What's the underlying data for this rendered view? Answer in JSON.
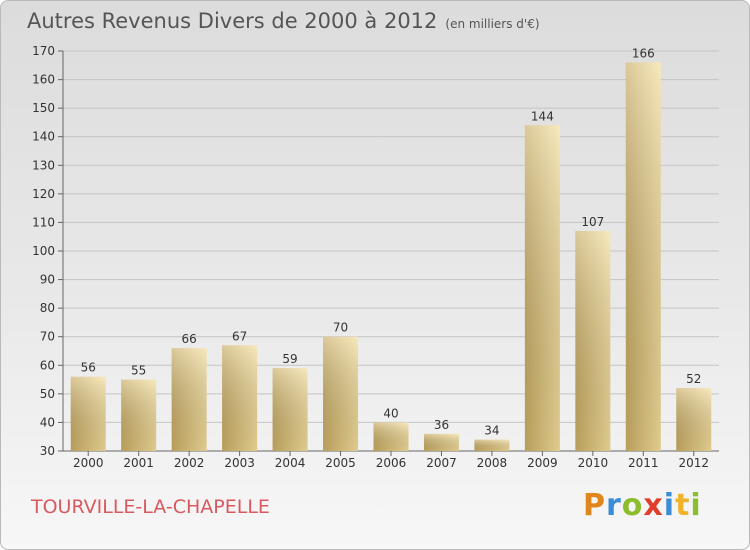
{
  "header": {
    "title": "Autres Revenus Divers de 2000 à 2012",
    "unit": "(en milliers d'€)"
  },
  "footer": {
    "place": "TOURVILLE-LA-CHAPELLE",
    "logo": "Proxiti"
  },
  "colors": {
    "bar_light": "#f3dd9b",
    "bar_dark": "#c8ac63",
    "place_text": "#d8595f",
    "logo_letters": [
      "#e1861c",
      "#3c8dd9",
      "#8bbd2c",
      "#e03d2c",
      "#3c8dd9",
      "#f1b32c",
      "#8bbd2c"
    ]
  },
  "chart_data": {
    "type": "bar",
    "title": "Autres Revenus Divers de 2000 à 2012",
    "subtitle": "(en milliers d'€)",
    "categories": [
      "2000",
      "2001",
      "2002",
      "2003",
      "2004",
      "2005",
      "2006",
      "2007",
      "2008",
      "2009",
      "2010",
      "2011",
      "2012"
    ],
    "values": [
      56,
      55,
      66,
      67,
      59,
      70,
      40,
      36,
      34,
      144,
      107,
      166,
      52
    ],
    "ylim": [
      30,
      170
    ],
    "yticks": [
      30,
      40,
      50,
      60,
      70,
      80,
      90,
      100,
      110,
      120,
      130,
      140,
      150,
      160,
      170
    ],
    "grid": true,
    "data_labels": true
  }
}
